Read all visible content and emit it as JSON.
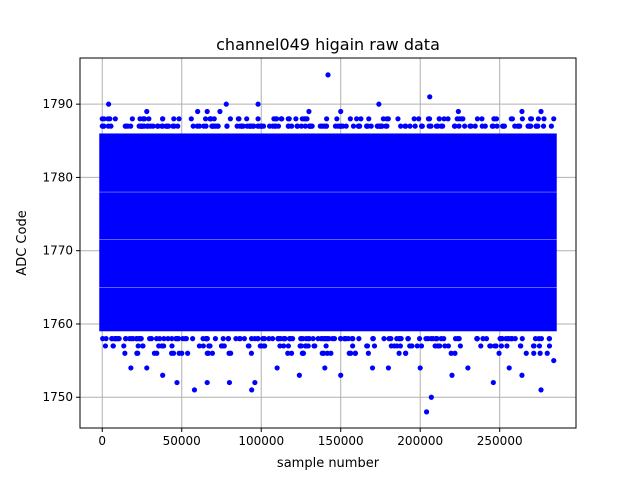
{
  "chart_data": {
    "type": "scatter",
    "title": "channel049 higain raw data",
    "xlabel": "sample number",
    "ylabel": "ADC Code",
    "xlim": [
      -14000,
      298000
    ],
    "ylim": [
      1745.8,
      1796.3
    ],
    "x_ticks": [
      0,
      50000,
      100000,
      150000,
      200000,
      250000
    ],
    "x_tick_labels": [
      "0",
      "50000",
      "100000",
      "150000",
      "200000",
      "250000"
    ],
    "y_ticks": [
      1750,
      1760,
      1770,
      1780,
      1790
    ],
    "y_tick_labels": [
      "1750",
      "1760",
      "1770",
      "1780",
      "1790"
    ],
    "grid": true,
    "marker_color": "#0000ff",
    "sample_range": [
      0,
      284000
    ],
    "dense_band_adc": [
      1759,
      1786
    ],
    "series": [
      {
        "values_note_points": [
          [
            4000,
            1790
          ],
          [
            28000,
            1789
          ],
          [
            78000,
            1790
          ],
          [
            98000,
            1790
          ],
          [
            117000,
            1788
          ],
          [
            130000,
            1789
          ],
          [
            142000,
            1794
          ],
          [
            150000,
            1789
          ],
          [
            174000,
            1790
          ],
          [
            206000,
            1791
          ],
          [
            224000,
            1789
          ],
          [
            264000,
            1789
          ],
          [
            276000,
            1789
          ],
          [
            284000,
            1788
          ],
          [
            60000,
            1789
          ],
          [
            66000,
            1789
          ],
          [
            74000,
            1789
          ],
          [
            38000,
            1788
          ],
          [
            45000,
            1788
          ],
          [
            56000,
            1788
          ],
          [
            86000,
            1788
          ],
          [
            160000,
            1788
          ],
          [
            186000,
            1788
          ],
          [
            212000,
            1788
          ],
          [
            236000,
            1788
          ],
          [
            248000,
            1788
          ],
          [
            258000,
            1788
          ],
          [
            270000,
            1788
          ],
          [
            204000,
            1748
          ],
          [
            207000,
            1750
          ],
          [
            47000,
            1752
          ],
          [
            58000,
            1751
          ],
          [
            94000,
            1751
          ],
          [
            96000,
            1752
          ],
          [
            124000,
            1753
          ],
          [
            276000,
            1751
          ],
          [
            246000,
            1752
          ],
          [
            264000,
            1753
          ],
          [
            220000,
            1753
          ],
          [
            150000,
            1753
          ],
          [
            170000,
            1754
          ],
          [
            200000,
            1754
          ],
          [
            230000,
            1754
          ],
          [
            18000,
            1754
          ],
          [
            28000,
            1754
          ],
          [
            38000,
            1753
          ],
          [
            66000,
            1752
          ],
          [
            80000,
            1752
          ],
          [
            110000,
            1754
          ],
          [
            140000,
            1754
          ],
          [
            180000,
            1754
          ],
          [
            256000,
            1754
          ],
          [
            284000,
            1755
          ]
        ]
      }
    ]
  }
}
